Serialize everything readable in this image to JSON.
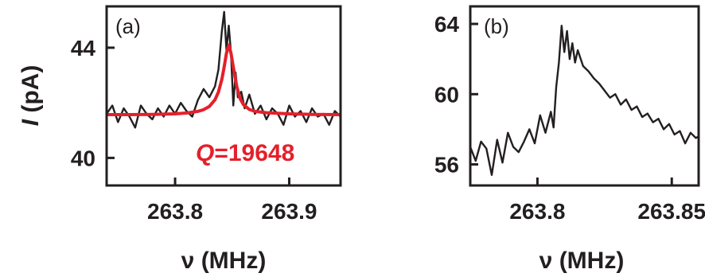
{
  "chart_data": [
    {
      "panel_label": "(a)",
      "type": "line",
      "xlabel": "ν (MHz)",
      "ylabel_symbol": "I",
      "ylabel_unit": " (pA)",
      "xlim": [
        263.74,
        263.945
      ],
      "ylim": [
        39.0,
        45.5
      ],
      "xticks": [
        263.8,
        263.9
      ],
      "xtick_labels": [
        "263.8",
        "263.9"
      ],
      "yticks": [
        40,
        44
      ],
      "ytick_labels": [
        "40",
        "44"
      ],
      "annotation": {
        "symbol": "Q",
        "text": "=19648",
        "color": "#e4202b"
      },
      "series": [
        {
          "role": "data",
          "color": "#231f20",
          "x": [
            263.74,
            263.745,
            263.75,
            263.755,
            263.76,
            263.765,
            263.77,
            263.775,
            263.78,
            263.785,
            263.79,
            263.795,
            263.8,
            263.805,
            263.81,
            263.815,
            263.82,
            263.825,
            263.83,
            263.835,
            263.838,
            263.841,
            263.843,
            263.845,
            263.847,
            263.849,
            263.851,
            263.853,
            263.855,
            263.858,
            263.861,
            263.865,
            263.87,
            263.875,
            263.88,
            263.885,
            263.89,
            263.895,
            263.9,
            263.905,
            263.91,
            263.915,
            263.92,
            263.925,
            263.93,
            263.935,
            263.94,
            263.945
          ],
          "y": [
            41.6,
            41.9,
            41.3,
            41.8,
            41.5,
            41.1,
            41.9,
            41.6,
            41.4,
            41.8,
            41.5,
            41.9,
            41.6,
            42.0,
            41.7,
            41.5,
            42.1,
            42.5,
            42.2,
            42.6,
            43.2,
            44.6,
            45.3,
            43.9,
            44.8,
            43.8,
            41.9,
            43.1,
            42.2,
            42.4,
            41.8,
            42.3,
            41.6,
            41.9,
            41.4,
            41.8,
            41.6,
            41.2,
            41.9,
            41.5,
            41.7,
            41.3,
            41.8,
            41.5,
            41.6,
            41.2,
            41.7,
            41.5
          ]
        },
        {
          "role": "fit",
          "color": "#e4202b",
          "x": [
            263.74,
            263.76,
            263.78,
            263.8,
            263.81,
            263.82,
            263.825,
            263.83,
            263.835,
            263.838,
            263.841,
            263.843,
            263.845,
            263.847,
            263.849,
            263.851,
            263.854,
            263.857,
            263.86,
            263.865,
            263.87,
            263.88,
            263.9,
            263.92,
            263.945
          ],
          "y": [
            41.57,
            41.57,
            41.58,
            41.6,
            41.63,
            41.69,
            41.75,
            41.87,
            42.11,
            42.39,
            42.85,
            43.3,
            43.8,
            44.1,
            43.8,
            43.3,
            42.6,
            42.15,
            41.93,
            41.76,
            41.69,
            41.64,
            41.6,
            41.58,
            41.57
          ]
        }
      ]
    },
    {
      "panel_label": "(b)",
      "type": "line",
      "xlabel": "ν (MHz)",
      "xlim": [
        263.775,
        263.86
      ],
      "ylim": [
        54.8,
        65.0
      ],
      "xticks": [
        263.8,
        263.85
      ],
      "xtick_labels": [
        "263.8",
        "263.85"
      ],
      "yticks": [
        56,
        60,
        64
      ],
      "ytick_labels": [
        "56",
        "60",
        "64"
      ],
      "series": [
        {
          "role": "data",
          "color": "#231f20",
          "x": [
            263.775,
            263.777,
            263.779,
            263.781,
            263.783,
            263.785,
            263.787,
            263.789,
            263.791,
            263.793,
            263.795,
            263.797,
            263.799,
            263.801,
            263.803,
            263.805,
            263.806,
            263.807,
            263.808,
            263.809,
            263.81,
            263.811,
            263.812,
            263.813,
            263.814,
            263.815,
            263.817,
            263.819,
            263.821,
            263.823,
            263.825,
            263.827,
            263.829,
            263.831,
            263.833,
            263.835,
            263.837,
            263.839,
            263.841,
            263.843,
            263.845,
            263.847,
            263.849,
            263.851,
            263.853,
            263.855,
            263.857,
            263.859,
            263.86
          ],
          "y": [
            57.0,
            56.2,
            57.3,
            56.9,
            55.4,
            57.4,
            56.1,
            57.8,
            57.0,
            56.7,
            57.3,
            58.0,
            57.2,
            58.8,
            57.8,
            59.0,
            58.1,
            60.4,
            61.8,
            63.9,
            62.4,
            63.6,
            62.0,
            62.9,
            61.8,
            62.5,
            61.6,
            61.3,
            60.9,
            60.6,
            60.2,
            59.8,
            60.0,
            59.4,
            59.7,
            59.1,
            59.3,
            58.7,
            58.9,
            58.4,
            58.6,
            58.0,
            58.3,
            57.7,
            57.9,
            57.2,
            57.8,
            57.5,
            57.6
          ]
        }
      ]
    }
  ]
}
